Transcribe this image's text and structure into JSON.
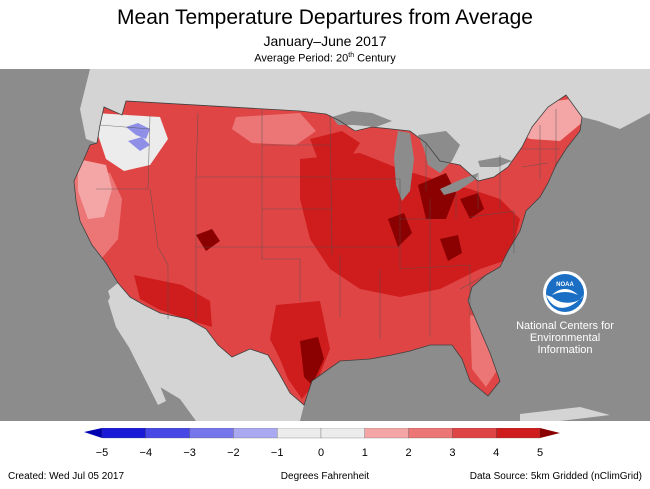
{
  "title": "Mean Temperature Departures from Average",
  "subtitle": "January–June 2017",
  "average_period_prefix": "Average Period: 20",
  "average_period_sup": "th",
  "average_period_suffix": " Century",
  "logo": {
    "name": "noaa-logo",
    "text": "NOAA"
  },
  "noaa_center": [
    "National Centers for",
    "Environmental",
    "Information"
  ],
  "legend": {
    "ticks": [
      "−5",
      "−4",
      "−3",
      "−2",
      "−1",
      "0",
      "1",
      "2",
      "3",
      "4",
      "5"
    ],
    "colors": [
      "#1a1ad6",
      "#4848e6",
      "#7676ec",
      "#a9a9f2",
      "#ececec",
      "#ececec",
      "#f4a6a6",
      "#ec7676",
      "#e04545",
      "#cf1c1c"
    ],
    "low_arrow_color": "#0000b0",
    "high_arrow_color": "#8b0000"
  },
  "units_label": "Degrees Fahrenheit",
  "created": "Created: Wed Jul 05 2017",
  "data_source": "Data Source: 5km Gridded (nClimGrid)",
  "colors": {
    "ocean": "#8c8c8c",
    "land_outside": "#d4d4d4",
    "water": "#8c8c8c",
    "anomaly_base": "#e04545",
    "anomaly_light": "#ec7676",
    "anomaly_lighter": "#f4a6a6",
    "anomaly_dark": "#cf1c1c",
    "anomaly_darkest": "#8b0000",
    "anomaly_near_zero": "#ececec",
    "anomaly_cool": "#8f8fe8",
    "noaa_blue": "#1a6fc4"
  }
}
